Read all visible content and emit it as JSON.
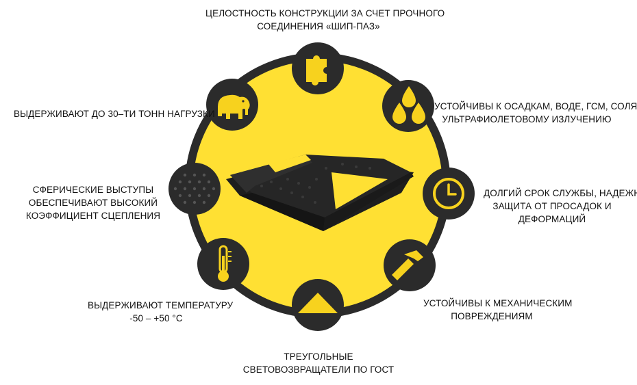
{
  "colors": {
    "accent": "#FFE033",
    "dark": "#2B2B2B",
    "icon_yellow": "#F7D21E",
    "text": "#111111"
  },
  "features": {
    "top": {
      "icon": "puzzle-icon",
      "lines": [
        "ЦЕЛОСТНОСТЬ КОНСТРУКЦИИ ЗА СЧЕТ ПРОЧНОГО",
        "СОЕДИНЕНИЯ «ШИП-ПАЗ»"
      ]
    },
    "top_right": {
      "icon": "water-drops-icon",
      "lines": [
        "УСТОЙЧИВЫ К ОСАДКАМ, ВОДЕ, ГСМ, СОЛЯМИ",
        "УЛЬТРАФИОЛЕТОВОМУ ИЗЛУЧЕНИЮ"
      ]
    },
    "right": {
      "icon": "clock-icon",
      "lines": [
        "ДОЛГИЙ СРОК СЛУЖБЫ, НАДЕЖНАЯ",
        "ЗАЩИТА ОТ ПРОСАДОК И",
        "ДЕФОРМАЦИЙ"
      ]
    },
    "bottom_right": {
      "icon": "hammer-icon",
      "lines": [
        "УСТОЙЧИВЫ К МЕХАНИЧЕСКИМ",
        "ПОВРЕЖДЕНИЯМ"
      ]
    },
    "bottom": {
      "icon": "triangle-reflector-icon",
      "lines": [
        "ТРЕУГОЛЬНЫЕ",
        "СВЕТОВОЗВРАЩАТЕЛИ ПО ГОСТ"
      ]
    },
    "bottom_left": {
      "icon": "thermometer-icon",
      "lines": [
        "ВЫДЕРЖИВАЮТ ТЕМПЕРАТУРУ",
        "-50 – +50 °С"
      ]
    },
    "left": {
      "icon": "dotted-surface-icon",
      "lines": [
        "СФЕРИЧЕСКИЕ ВЫСТУПЫ",
        "ОБЕСПЕЧИВАЮТ ВЫСОКИЙ",
        "КОЭФФИЦИЕНТ СЦЕПЛЕНИЯ"
      ]
    },
    "top_left": {
      "icon": "elephant-icon",
      "lines": [
        "ВЫДЕРЖИВАЮТ ДО 30–ТИ ТОНН НАГРУЗКИ"
      ]
    }
  },
  "product": {
    "icon": "speed-bump-image"
  }
}
